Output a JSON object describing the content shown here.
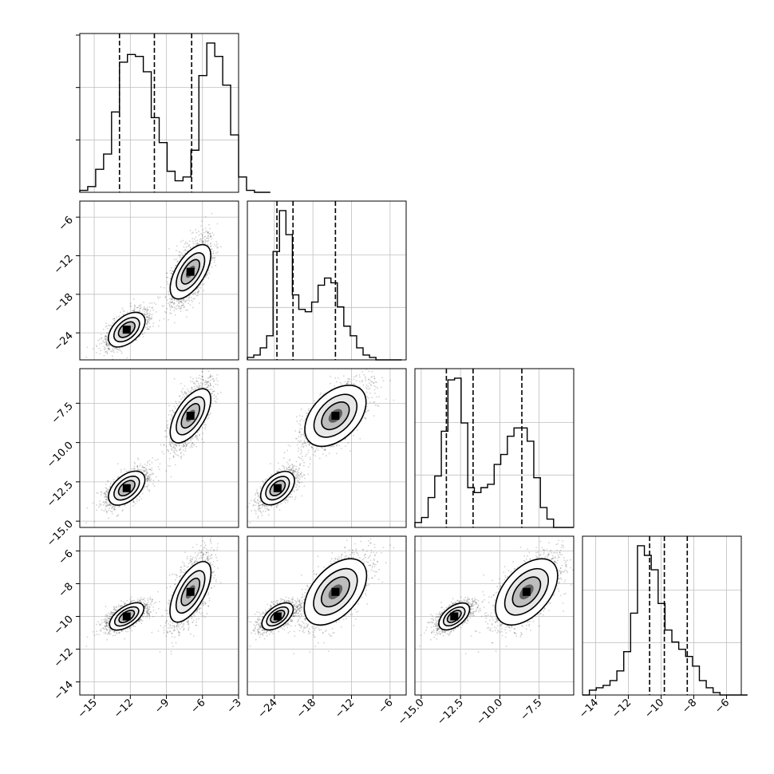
{
  "chart_data": {
    "type": "corner",
    "title": "",
    "grid": true,
    "variables": [
      {
        "range": [
          -16.2,
          -3
        ],
        "ticks": [
          -15,
          -12,
          -9,
          -6,
          -3
        ],
        "tick_labels": [
          "−15",
          "−12",
          "−9",
          "−6",
          "−3"
        ]
      },
      {
        "range": [
          -28.2,
          -3.5
        ],
        "ticks": [
          -24,
          -18,
          -12,
          -6
        ],
        "tick_labels": [
          "−24",
          "−18",
          "−12",
          "−6"
        ]
      },
      {
        "range": [
          -15.4,
          -5.3
        ],
        "ticks": [
          -15,
          -12.5,
          -10,
          -7.5
        ],
        "tick_labels": [
          "−15.0",
          "−12.5",
          "−10.0",
          "−7.5"
        ]
      },
      {
        "range": [
          -14.8,
          -5.1
        ],
        "ticks": [
          -14,
          -12,
          -10,
          -8,
          -6
        ],
        "tick_labels": [
          "−14",
          "−12",
          "−10",
          "−8",
          "−6"
        ]
      }
    ],
    "histograms": [
      {
        "bin_edges_start": -16.2,
        "bin_width": 0.66,
        "counts": [
          0.01,
          0.03,
          0.12,
          0.2,
          0.42,
          0.68,
          0.72,
          0.71,
          0.63,
          0.39,
          0.26,
          0.11,
          0.06,
          0.08,
          0.22,
          0.61,
          0.78,
          0.71,
          0.56,
          0.3,
          0.08,
          0.01,
          0.0,
          0.0
        ],
        "quantiles": [
          -12.9,
          -10.0,
          -6.9
        ]
      },
      {
        "bin_edges_start": -28.2,
        "bin_width": 1.0,
        "counts": [
          0.01,
          0.02,
          0.05,
          0.1,
          0.45,
          0.62,
          0.52,
          0.27,
          0.21,
          0.2,
          0.24,
          0.31,
          0.34,
          0.32,
          0.22,
          0.14,
          0.1,
          0.05,
          0.02,
          0.01,
          0.0,
          0.0,
          0.0,
          0.0
        ],
        "quantiles": [
          -23.6,
          -21.1,
          -14.5
        ]
      },
      {
        "bin_edges_start": -15.4,
        "bin_width": 0.42,
        "counts": [
          0.03,
          0.06,
          0.18,
          0.31,
          0.58,
          0.89,
          0.9,
          0.63,
          0.24,
          0.21,
          0.24,
          0.26,
          0.38,
          0.44,
          0.55,
          0.6,
          0.6,
          0.52,
          0.3,
          0.12,
          0.05,
          0.0,
          0.0,
          0.0
        ],
        "quantiles": [
          -13.4,
          -11.7,
          -8.6
        ]
      },
      {
        "bin_edges_start": -14.8,
        "bin_width": 0.42,
        "counts": [
          0.0,
          0.02,
          0.03,
          0.04,
          0.06,
          0.1,
          0.18,
          0.34,
          0.62,
          0.58,
          0.52,
          0.38,
          0.27,
          0.22,
          0.19,
          0.16,
          0.12,
          0.06,
          0.03,
          0.01,
          0.0,
          0.0,
          0.0,
          0.0
        ],
        "quantiles": [
          -10.7,
          -9.8,
          -8.4
        ]
      }
    ],
    "clusters": [
      {
        "mean": [
          -12.3,
          -23.5,
          -12.9,
          -10.0
        ],
        "sd": [
          0.9,
          1.5,
          0.6,
          0.45
        ]
      },
      {
        "mean": [
          -7.0,
          -14.5,
          -8.3,
          -8.5
        ],
        "sd": [
          0.9,
          2.7,
          1.1,
          1.2
        ]
      }
    ]
  }
}
